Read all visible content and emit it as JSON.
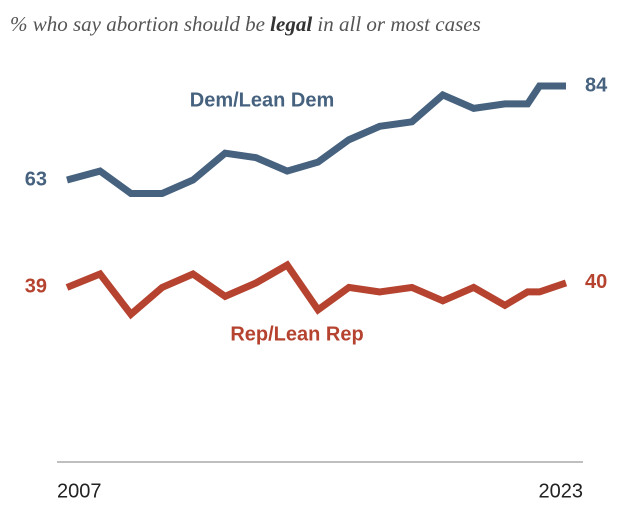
{
  "chart_data": {
    "type": "line",
    "title": [
      "% who say abortion should be ",
      "legal",
      " in all or most cases"
    ],
    "x": [
      2007,
      2008.06,
      2009.05,
      2010.05,
      2011.04,
      2012.07,
      2013.06,
      2014.06,
      2015.05,
      2016.04,
      2017.03,
      2018.06,
      2019.05,
      2020.04,
      2021.04,
      2021.77,
      2022.15,
      2023
    ],
    "xlim": [
      2007,
      2023
    ],
    "xticks": [
      2007,
      2023
    ],
    "ylim": [
      0,
      100
    ],
    "series": [
      {
        "name": "Dem/Lean Dem",
        "color": "#46627f",
        "values": [
          63,
          65,
          60,
          60,
          63,
          69,
          68,
          65,
          67,
          72,
          75,
          76,
          82,
          79,
          80,
          80,
          84,
          84
        ]
      },
      {
        "name": "Rep/Lean Rep",
        "color": "#b5432f",
        "values": [
          39,
          42,
          33,
          39,
          42,
          37,
          40,
          44,
          34,
          39,
          38,
          39,
          36,
          39,
          35,
          38,
          38,
          40
        ]
      }
    ]
  }
}
